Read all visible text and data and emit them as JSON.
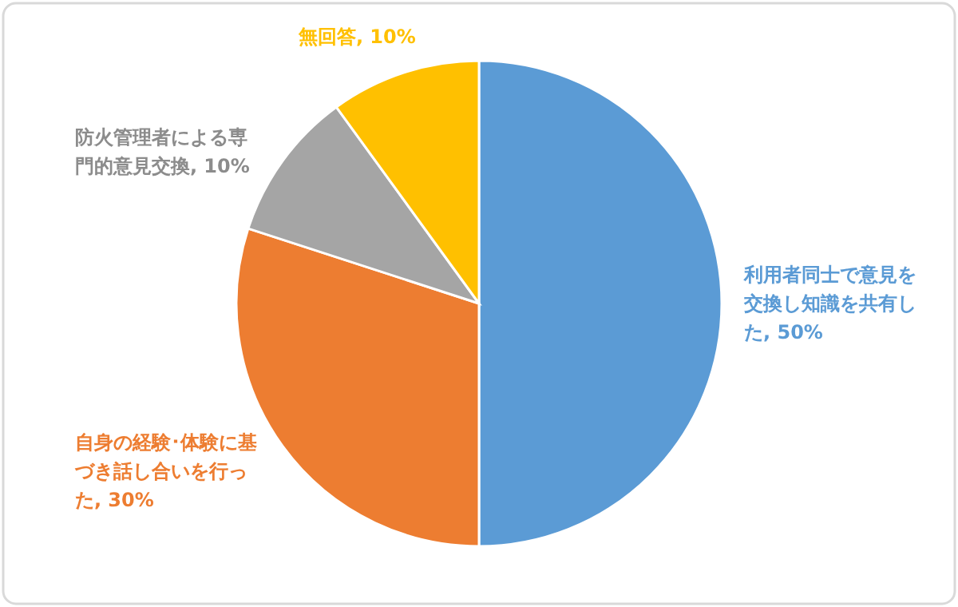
{
  "chart_data": {
    "type": "pie",
    "categories": [
      "利用者同士で意見を交換し知識を共有した",
      "自身の経験･体験に基づき話し合いを行った",
      "防火管理者による専門的意見交換",
      "無回答"
    ],
    "values": [
      50,
      30,
      10,
      10
    ],
    "colors": [
      "#5b9bd5",
      "#ed7d31",
      "#a5a5a5",
      "#ffc000"
    ],
    "value_labels": [
      "50%",
      "30%",
      "10%",
      "10%"
    ]
  }
}
